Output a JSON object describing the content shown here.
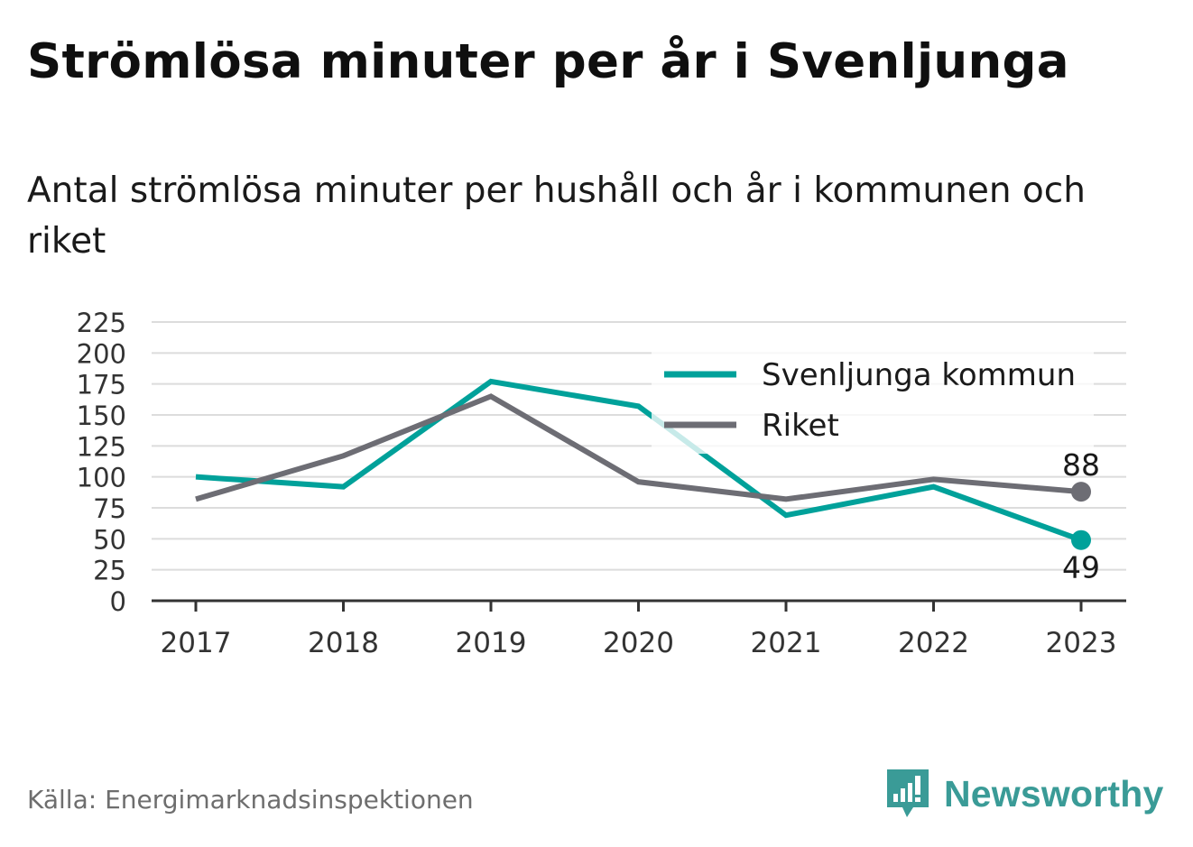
{
  "header": {
    "title": "Strömlösa minuter per år i Svenljunga",
    "subtitle": "Antal strömlösa minuter per hushåll och år i kommunen och riket"
  },
  "footer": {
    "source": "Källa: Energimarknadsinspektionen",
    "brand": "Newsworthy",
    "brand_color": "#3a9b97"
  },
  "chart_data": {
    "type": "line",
    "title": "",
    "xlabel": "",
    "ylabel": "",
    "categories": [
      "2017",
      "2018",
      "2019",
      "2020",
      "2021",
      "2022",
      "2023"
    ],
    "y_ticks": [
      "0",
      "25",
      "50",
      "75",
      "100",
      "125",
      "150",
      "175",
      "200",
      "225"
    ],
    "ylim": [
      0,
      225
    ],
    "grid": true,
    "legend_position": "top-right",
    "series": [
      {
        "name": "Svenljunga kommun",
        "color": "#00a19a",
        "values": [
          100,
          92,
          177,
          157,
          69,
          92,
          49
        ],
        "end_label": "49"
      },
      {
        "name": "Riket",
        "color": "#6d6d74",
        "values": [
          82,
          117,
          165,
          96,
          82,
          98,
          88
        ],
        "end_label": "88"
      }
    ]
  }
}
